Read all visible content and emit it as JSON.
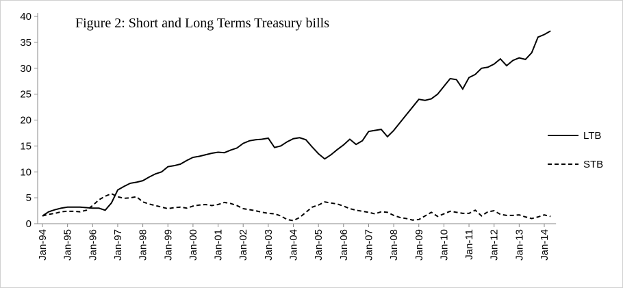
{
  "chart_data": {
    "type": "line",
    "title": "Figure  2: Short and Long Terms Treasury bills",
    "categories": [
      "Jan-94",
      null,
      null,
      null,
      "Jan-95",
      null,
      null,
      null,
      "Jan-96",
      null,
      null,
      null,
      "Jan-97",
      null,
      null,
      null,
      "Jan-98",
      null,
      null,
      null,
      "Jan-99",
      null,
      null,
      null,
      "Jan-00",
      null,
      null,
      null,
      "Jan-01",
      null,
      null,
      null,
      "Jan-02",
      null,
      null,
      null,
      "Jan-03",
      null,
      null,
      null,
      "Jan-04",
      null,
      null,
      null,
      "Jan-05",
      null,
      null,
      null,
      "Jan-06",
      null,
      null,
      null,
      "Jan-07",
      null,
      null,
      null,
      "Jan-08",
      null,
      null,
      null,
      "Jan-09",
      null,
      null,
      null,
      "Jan-10",
      null,
      null,
      null,
      "Jan-11",
      null,
      null,
      null,
      "Jan-12",
      null,
      null,
      null,
      "Jan-13",
      null,
      null,
      null,
      "Jan-14",
      null
    ],
    "series": [
      {
        "name": "LTB",
        "color": "#000000",
        "style": "solid",
        "values": [
          1.5,
          2.3,
          2.7,
          3.0,
          3.2,
          3.2,
          3.2,
          3.1,
          3.0,
          3.0,
          2.6,
          4.0,
          6.5,
          7.2,
          7.8,
          8.0,
          8.3,
          9.0,
          9.6,
          10.0,
          11.0,
          11.2,
          11.5,
          12.2,
          12.8,
          13.0,
          13.3,
          13.6,
          13.8,
          13.7,
          14.2,
          14.6,
          15.5,
          16.0,
          16.2,
          16.3,
          16.5,
          14.7,
          15.0,
          15.8,
          16.4,
          16.6,
          16.2,
          14.8,
          13.5,
          12.5,
          13.3,
          14.3,
          15.2,
          16.3,
          15.3,
          16.0,
          17.8,
          18.0,
          18.2,
          16.8,
          18.0,
          19.5,
          21.0,
          22.5,
          24.0,
          23.8,
          24.1,
          25.0,
          26.5,
          28.0,
          27.8,
          26.0,
          28.2,
          28.8,
          30.0,
          30.2,
          30.8,
          31.8,
          30.5,
          31.5,
          32.0,
          31.7,
          33.0,
          36.0,
          36.5,
          37.2
        ]
      },
      {
        "name": "STB",
        "color": "#000000",
        "style": "dashed",
        "values": [
          1.5,
          1.8,
          2.0,
          2.3,
          2.4,
          2.4,
          2.3,
          2.6,
          3.5,
          4.6,
          5.3,
          5.8,
          5.2,
          4.9,
          5.0,
          5.2,
          4.2,
          3.8,
          3.5,
          3.2,
          2.9,
          3.1,
          3.2,
          3.0,
          3.4,
          3.6,
          3.7,
          3.5,
          3.7,
          4.1,
          3.9,
          3.5,
          2.9,
          2.7,
          2.5,
          2.2,
          2.0,
          1.9,
          1.5,
          0.8,
          0.6,
          1.2,
          2.2,
          3.2,
          3.6,
          4.2,
          4.0,
          3.8,
          3.4,
          2.9,
          2.6,
          2.4,
          2.2,
          1.9,
          2.3,
          2.2,
          1.6,
          1.2,
          1.0,
          0.7,
          0.8,
          1.5,
          2.2,
          1.4,
          1.9,
          2.4,
          2.2,
          2.0,
          2.0,
          2.6,
          1.5,
          2.3,
          2.5,
          1.8,
          1.6,
          1.6,
          1.7,
          1.3,
          1.0,
          1.3,
          1.7,
          1.4
        ]
      }
    ],
    "ylim": [
      0,
      40
    ],
    "yticks": [
      0,
      5,
      10,
      15,
      20,
      25,
      30,
      35,
      40
    ],
    "legend": "right"
  }
}
